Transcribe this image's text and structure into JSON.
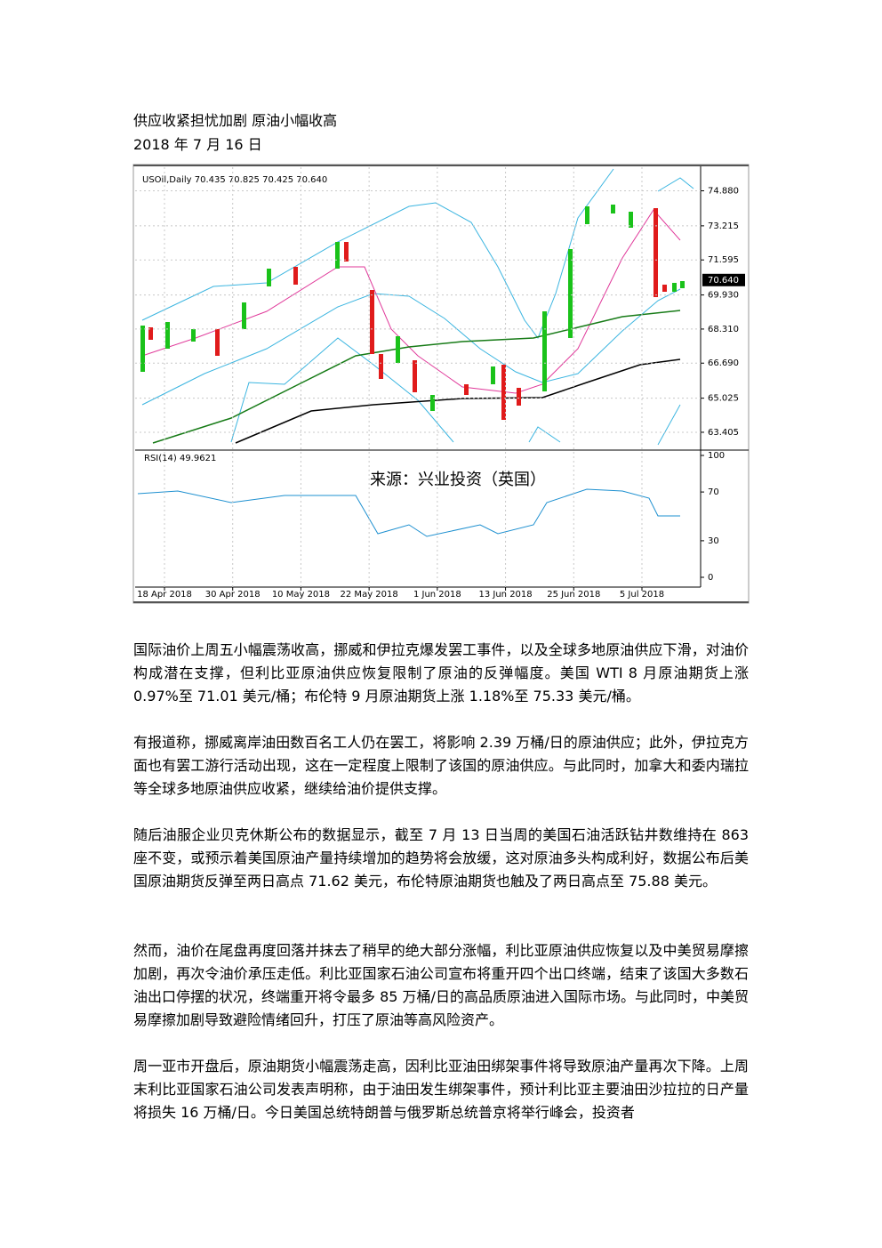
{
  "header": {
    "title": "供应收紧担忧加剧 原油小幅收高",
    "date": "2018 年 7 月 16 日"
  },
  "chart_data": {
    "type": "candlestick",
    "title": "USOil,Daily  70.435 70.825 70.425 70.640",
    "source": "来源：兴业投资（英国）",
    "categories": [
      "18 Apr 2018",
      "30 Apr 2018",
      "10 May 2018",
      "22 May 2018",
      "1 Jun 2018",
      "13 Jun 2018",
      "25 Jun 2018",
      "5 Jul 2018"
    ],
    "ylim": [
      62.6,
      76.0
    ],
    "yticks": [
      {
        "value": 74.88,
        "label": "74.880"
      },
      {
        "value": 73.215,
        "label": "73.215"
      },
      {
        "value": 71.595,
        "label": "71.595"
      },
      {
        "value": 69.93,
        "label": "69.930"
      },
      {
        "value": 68.31,
        "label": "68.310"
      },
      {
        "value": 66.69,
        "label": "66.690"
      },
      {
        "value": 65.025,
        "label": "65.025"
      },
      {
        "value": 63.405,
        "label": "63.405"
      }
    ],
    "last_price": {
      "value": 70.64,
      "label": "70.640"
    },
    "rsi_title": "RSI(14) 49.9621",
    "rsi_ylim": [
      0,
      100
    ],
    "rsi_yticks": [
      100,
      70,
      30,
      0
    ],
    "grid": true
  },
  "paragraphs": [
    "国际油价上周五小幅震荡收高，挪威和伊拉克爆发罢工事件，以及全球多地原油供应下滑，对油价构成潜在支撑，但利比亚原油供应恢复限制了原油的反弹幅度。美国 WTI 8 月原油期货上涨 0.97%至 71.01 美元/桶；布伦特 9 月原油期货上涨 1.18%至 75.33 美元/桶。",
    "有报道称，挪威离岸油田数百名工人仍在罢工，将影响 2.39 万桶/日的原油供应；此外，伊拉克方面也有罢工游行活动出现，这在一定程度上限制了该国的原油供应。与此同时，加拿大和委内瑞拉等全球多地原油供应收紧，继续给油价提供支撑。",
    "随后油服企业贝克休斯公布的数据显示，截至 7 月 13 日当周的美国石油活跃钻井数维持在 863 座不变，或预示着美国原油产量持续增加的趋势将会放缓，这对原油多头构成利好，数据公布后美国原油期货反弹至两日高点 71.62 美元，布伦特原油期货也触及了两日高点至 75.88 美元。",
    "然而，油价在尾盘再度回落并抹去了稍早的绝大部分涨幅，利比亚原油供应恢复以及中美贸易摩擦加剧，再次令油价承压走低。利比亚国家石油公司宣布将重开四个出口终端，结束了该国大多数石油出口停摆的状况，终端重开将令最多 85 万桶/日的高品质原油进入国际市场。与此同时，中美贸易摩擦加剧导致避险情绪回升，打压了原油等高风险资产。",
    "周一亚市开盘后，原油期货小幅震荡走高，因利比亚油田绑架事件将导致原油产量再次下降。上周末利比亚国家石油公司发表声明称，由于油田发生绑架事件，预计利比亚主要油田沙拉拉的日产量将损失 16 万桶/日。今日美国总统特朗普与俄罗斯总统普京将举行峰会，投资者"
  ]
}
